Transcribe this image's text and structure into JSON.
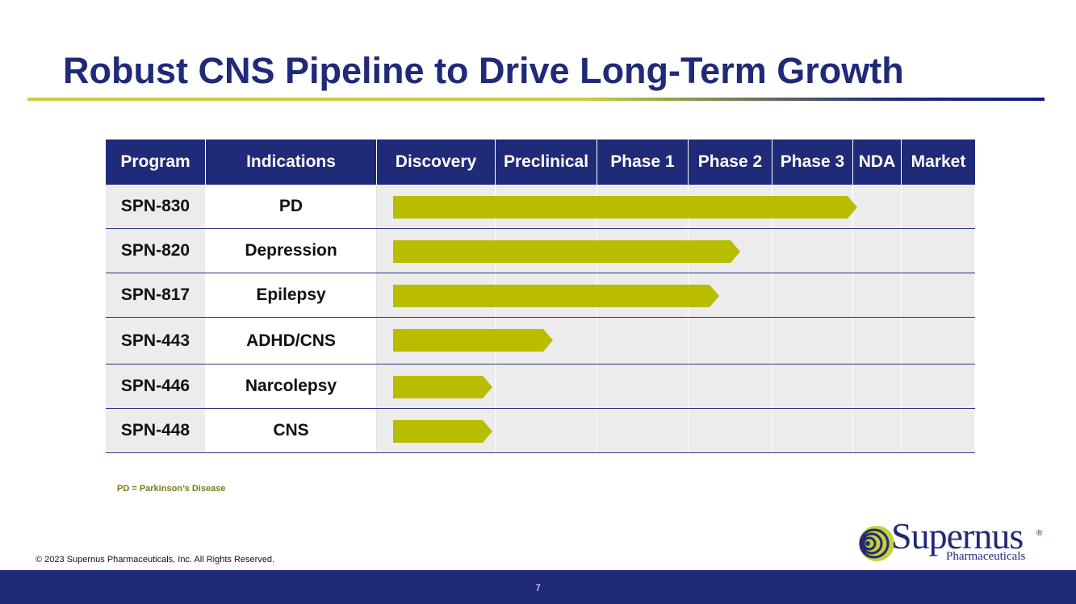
{
  "slide": {
    "title": "Robust CNS Pipeline to Drive Long-Term Growth",
    "footnote": "PD = Parkinson’s Disease",
    "copyright": "© 2023 Supernus Pharmaceuticals, Inc. All Rights Reserved.",
    "page_number": "7"
  },
  "logo": {
    "name": "Supernus",
    "registered": "®",
    "subtitle": "Pharmaceuticals"
  },
  "table": {
    "headers": [
      "Program",
      "Indications",
      "Discovery",
      "Preclinical",
      "Phase 1",
      "Phase 2",
      "Phase 3",
      "NDA",
      "Market"
    ],
    "rows": [
      {
        "program": "SPN-830",
        "indication": "PD",
        "stage_reached": "NDA"
      },
      {
        "program": "SPN-820",
        "indication": "Depression",
        "stage_reached": "Phase 2"
      },
      {
        "program": "SPN-817",
        "indication": "Epilepsy",
        "stage_reached": "Phase 2"
      },
      {
        "program": "SPN-443",
        "indication": "ADHD/CNS",
        "stage_reached": "Preclinical"
      },
      {
        "program": "SPN-446",
        "indication": "Narcolepsy",
        "stage_reached": "Discovery"
      },
      {
        "program": "SPN-448",
        "indication": "CNS",
        "stage_reached": "Discovery"
      }
    ],
    "bar_progress_in_phases": [
      5.05,
      3.6,
      3.35,
      1.55,
      0.96,
      0.96
    ]
  },
  "colors": {
    "navy": "#1f2a78",
    "bar": "#b8bd00",
    "cell_gray": "#ececec"
  }
}
